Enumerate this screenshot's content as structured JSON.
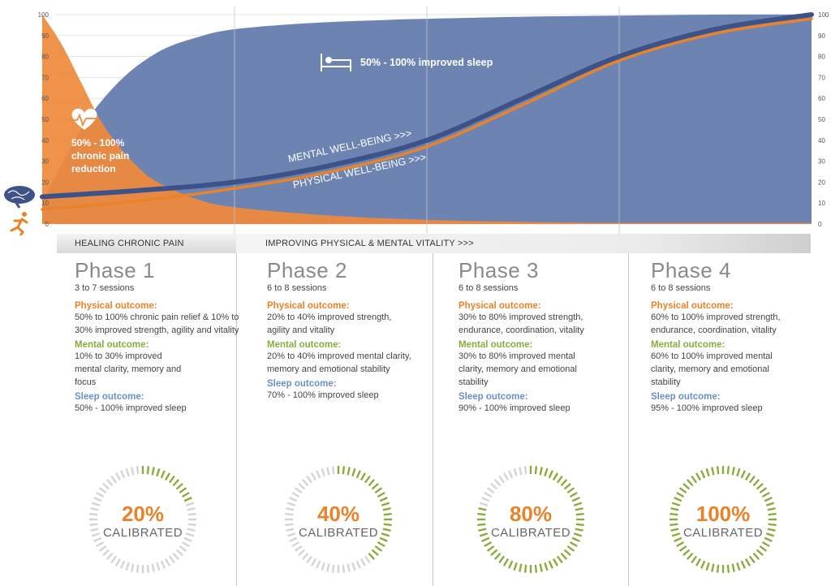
{
  "colors": {
    "sleep_area": "#6d84b2",
    "pain_area": "#ee8a3c",
    "mental_line": "#3c5288",
    "physical_line": "#e8832a",
    "physical_label": "#e8832a",
    "mental_label": "#8aab3e",
    "sleep_label": "#6d8fc6",
    "gauge_green": "#8aab3e",
    "gauge_grey": "#d4d4d4"
  },
  "chart_data": {
    "type": "area",
    "y_axis_left": [
      "100",
      "90",
      "80",
      "70",
      "60",
      "50",
      "40",
      "30",
      "20",
      "10",
      "0"
    ],
    "y_axis_right": [
      "100",
      "90",
      "80",
      "70",
      "60",
      "50",
      "40",
      "30",
      "20",
      "10",
      "0"
    ],
    "ylim": [
      0,
      100
    ],
    "xlim": [
      0,
      4
    ],
    "phase_boundaries": [
      1,
      2,
      3
    ],
    "grid": true,
    "series": [
      {
        "name": "",
        "kind": "area",
        "x": [
          0,
          0.2,
          0.4,
          0.6,
          0.8,
          1.0,
          1.4,
          1.8,
          2.0,
          2.5,
          3.0,
          3.5,
          4.0
        ],
        "y": [
          10,
          45,
          68,
          82,
          89,
          93,
          96,
          97.5,
          98,
          99,
          99.5,
          100,
          100
        ]
      },
      {
        "name": "",
        "kind": "area",
        "x": [
          0,
          0.1,
          0.2,
          0.3,
          0.4,
          0.5,
          0.6,
          0.8,
          1.0,
          1.5,
          2.0,
          2.5,
          3.0,
          4.0
        ],
        "y": [
          100,
          86,
          68,
          50,
          37,
          27,
          20,
          12,
          8,
          4,
          2,
          1,
          0.5,
          0.5
        ]
      },
      {
        "name": "MENTAL WELL-BEING >>>",
        "kind": "line",
        "x": [
          0,
          0.5,
          1.0,
          1.5,
          2.0,
          2.5,
          3.0,
          3.5,
          4.0
        ],
        "y": [
          13,
          16,
          20,
          28,
          40,
          60,
          80,
          93,
          100
        ]
      },
      {
        "name": "PHYSICAL WELL-BEING >>>",
        "kind": "line",
        "x": [
          0,
          0.5,
          1.0,
          1.5,
          2.0,
          2.5,
          3.0,
          3.5,
          4.0
        ],
        "y": [
          7,
          11,
          17,
          25,
          37,
          57,
          78,
          91,
          98
        ]
      }
    ],
    "annotations": {
      "sleep": "50% - 100%  improved sleep",
      "pain_line1": "50% - 100%",
      "pain_line2": "chronic pain",
      "pain_line3": "reduction"
    }
  },
  "bands": {
    "left": "HEALING CHRONIC PAIN",
    "right": "IMPROVING  PHYSICAL & MENTAL VITALITY >>>"
  },
  "labels": {
    "physical": "Physical outcome:",
    "mental": "Mental outcome:",
    "sleep": "Sleep outcome:"
  },
  "phases": [
    {
      "title": "Phase 1",
      "sessions": "3 to 7 sessions",
      "physical": "50% to 100% chronic pain relief & 10% to 30% improved strength, agility and vitality",
      "mental": "10% to 30% improved mental clarity, memory and focus",
      "sleep": "50% - 100% improved sleep",
      "percent": "20%",
      "calibrated": "CALIBRATED",
      "fraction": 0.2
    },
    {
      "title": "Phase 2",
      "sessions": "6 to 8 sessions",
      "physical": "20% to 40% improved strength, agility and vitality",
      "mental": "20% to 40% improved mental clarity, memory and emotional stability",
      "sleep": "70% - 100% improved sleep",
      "percent": "40%",
      "calibrated": "CALIBRATED",
      "fraction": 0.4
    },
    {
      "title": "Phase 3",
      "sessions": "6 to 8 sessions",
      "physical": "30% to 80% improved strength, endurance, coordination, vitality",
      "mental": "30% to 80% improved mental clarity, memory and emotional stability",
      "sleep": "90% - 100% improved sleep",
      "percent": "80%",
      "calibrated": "CALIBRATED",
      "fraction": 0.8
    },
    {
      "title": "Phase 4",
      "sessions": "6 to 8 sessions",
      "physical": "60% to 100% improved strength, endurance, coordination, vitality",
      "mental": "60% to 100% improved mental clarity, memory and emotional stability",
      "sleep": "95% - 100% improved sleep",
      "percent": "100%",
      "calibrated": "CALIBRATED",
      "fraction": 1.0
    }
  ]
}
